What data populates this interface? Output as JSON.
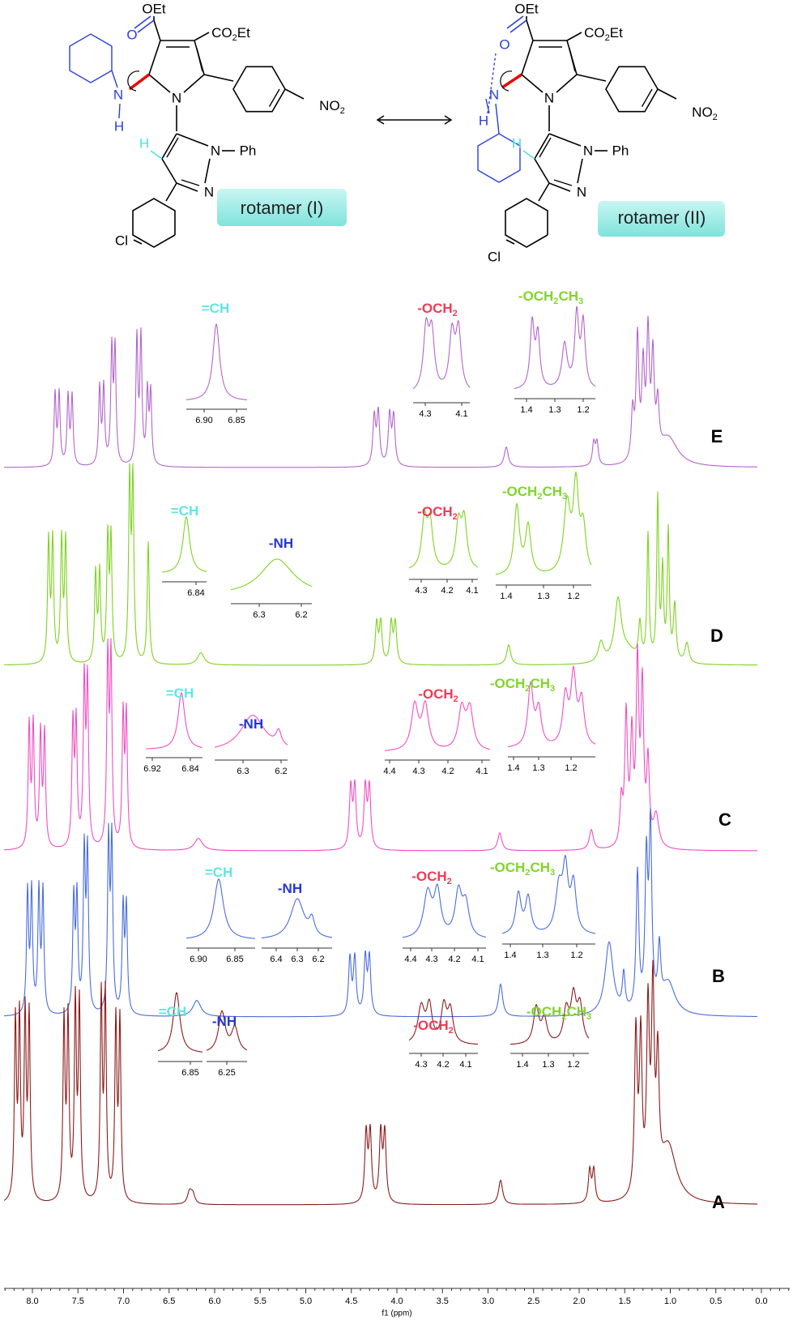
{
  "structures": {
    "rotamer_1": {
      "oet": "OEt",
      "co2et": [
        "CO",
        "2",
        "Et"
      ],
      "o": "O",
      "n_ring": "N",
      "n_amine": "N",
      "h_amine": "H",
      "no2": [
        "NO",
        "2"
      ],
      "h_vinyl": "H",
      "n_ph": "N",
      "ph": "Ph",
      "n_pyrazole": "N",
      "cl": "Cl",
      "label": "rotamer (I)"
    },
    "rotamer_2": {
      "oet": "OEt",
      "co2et": [
        "CO",
        "2",
        "Et"
      ],
      "o": "O",
      "n_ring": "N",
      "n_amine": "N",
      "h_amine": "H",
      "no2": [
        "NO",
        "2"
      ],
      "h_vinyl": "H",
      "n_ph": "N",
      "ph": "Ph",
      "n_pyrazole": "N",
      "cl": "Cl",
      "label": "rotamer (II)"
    }
  },
  "spectra": [
    {
      "label": "E",
      "insets": [
        {
          "title": [
            "=CH"
          ],
          "ticks": [
            "6.90",
            "6.85"
          ]
        },
        {
          "title": [
            "-OCH",
            "2"
          ],
          "ticks": [
            "4.3",
            "4.1"
          ]
        },
        {
          "title": [
            "-OCH",
            "2",
            "CH",
            "3"
          ],
          "ticks": [
            "1.4",
            "1.3",
            "1.2"
          ]
        }
      ]
    },
    {
      "label": "D",
      "insets": [
        {
          "title": [
            "=CH"
          ],
          "ticks": [
            "6.84"
          ]
        },
        {
          "title": [
            "-NH"
          ],
          "ticks": [
            "6.3",
            "6.2"
          ]
        },
        {
          "title": [
            "-OCH",
            "2"
          ],
          "ticks": [
            "4.3",
            "4.2",
            "4.1"
          ]
        },
        {
          "title": [
            "-OCH",
            "2",
            "CH",
            "3"
          ],
          "ticks": [
            "1.4",
            "1.3",
            "1.2"
          ]
        }
      ]
    },
    {
      "label": "C",
      "insets": [
        {
          "title": [
            "=CH"
          ],
          "ticks": [
            "6.92",
            "6.84"
          ]
        },
        {
          "title": [
            "-NH"
          ],
          "ticks": [
            "6.3",
            "6.2"
          ]
        },
        {
          "title": [
            "-OCH",
            "2"
          ],
          "ticks": [
            "4.4",
            "4.3",
            "4.2",
            "4.1"
          ]
        },
        {
          "title": [
            "-OCH",
            "2",
            "CH",
            "3"
          ],
          "ticks": [
            "1.4",
            "1.3",
            "1.2"
          ]
        }
      ]
    },
    {
      "label": "B",
      "insets": [
        {
          "title": [
            "=CH"
          ],
          "ticks": [
            "6.90",
            "6.85"
          ]
        },
        {
          "title": [
            "-NH"
          ],
          "ticks": [
            "6.4",
            "6.3",
            "6.2"
          ]
        },
        {
          "title": [
            "-OCH",
            "2"
          ],
          "ticks": [
            "4.4",
            "4.3",
            "4.2",
            "4.1"
          ]
        },
        {
          "title": [
            "-OCH",
            "2",
            "CH",
            "3"
          ],
          "ticks": [
            "1.4",
            "1.3",
            "1.2"
          ]
        }
      ]
    },
    {
      "label": "A",
      "insets": [
        {
          "title": [
            "=CH"
          ],
          "ticks": [
            "6.85"
          ]
        },
        {
          "title": [
            "-NH"
          ],
          "ticks": [
            "6.25"
          ]
        },
        {
          "title": [
            "-OCH",
            "2"
          ],
          "ticks": [
            "4.3",
            "4.2",
            "4.1"
          ]
        },
        {
          "title": [
            "-OCH",
            "2",
            "CH",
            "3"
          ],
          "ticks": [
            "1.4",
            "1.3",
            "1.2"
          ]
        }
      ]
    }
  ],
  "axis": {
    "ticks": [
      "8.0",
      "7.5",
      "7.0",
      "6.5",
      "6.0",
      "5.5",
      "5.0",
      "4.5",
      "4.0",
      "3.5",
      "3.0",
      "2.5",
      "2.0",
      "1.5",
      "1.0",
      "0.5",
      "0.0"
    ],
    "label": "f1 (ppm)"
  }
}
